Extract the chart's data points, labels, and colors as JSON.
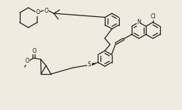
{
  "bg_color": "#f0ebe0",
  "line_color": "#1a1a1a",
  "lw": 0.9,
  "figsize": [
    2.57,
    1.56
  ],
  "dpi": 100,
  "atoms": {
    "Cl": "Cl",
    "N": "N",
    "S": "S",
    "O1": "O",
    "O2": "O",
    "O3": "O"
  }
}
